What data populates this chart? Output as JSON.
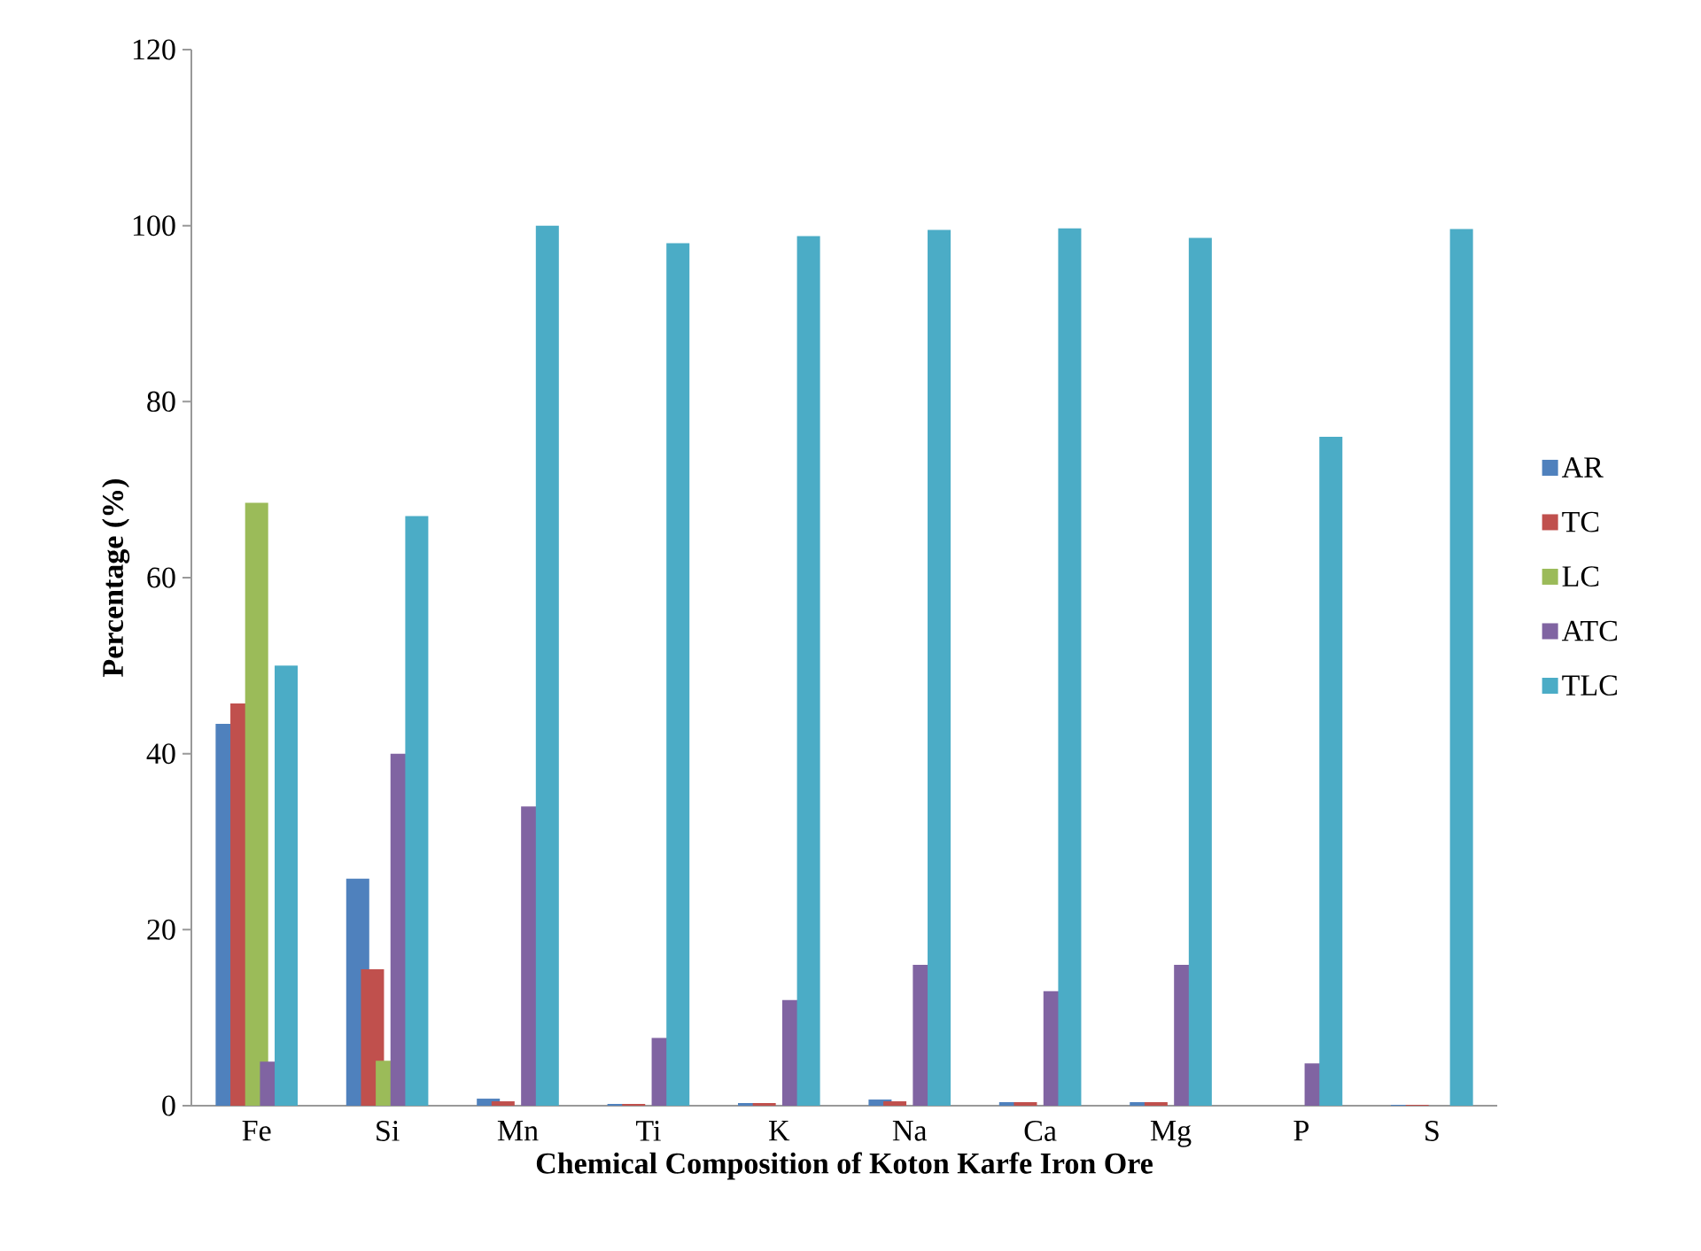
{
  "chart_data": {
    "type": "bar",
    "xlabel": "Chemical Composition of Koton Karfe Iron Ore",
    "ylabel": "Percentage (%)",
    "categories": [
      "Fe",
      "Si",
      "Mn",
      "Ti",
      "K",
      "Na",
      "Ca",
      "Mg",
      "P",
      "S"
    ],
    "series": [
      {
        "name": "AR",
        "color": "#4f81bd",
        "values": [
          43.4,
          25.8,
          0.8,
          0.2,
          0.3,
          0.7,
          0.4,
          0.4,
          0,
          0.1
        ]
      },
      {
        "name": "TC",
        "color": "#c0504d",
        "values": [
          45.7,
          15.5,
          0.5,
          0.2,
          0.3,
          0.5,
          0.4,
          0.4,
          0,
          0.1
        ]
      },
      {
        "name": "LC",
        "color": "#9bbb59",
        "values": [
          68.5,
          5.1,
          0,
          0,
          0,
          0,
          0,
          0,
          0,
          0
        ]
      },
      {
        "name": "ATC",
        "color": "#8064a2",
        "values": [
          5,
          40,
          34,
          7.7,
          12,
          16,
          13,
          16,
          4.8,
          null
        ]
      },
      {
        "name": "TLC",
        "color": "#4bacc6",
        "values": [
          50,
          67,
          100,
          98,
          98.8,
          99.5,
          99.7,
          98.6,
          76,
          99.6
        ]
      }
    ],
    "ylim": [
      0,
      120
    ],
    "yticks": [
      0,
      20,
      40,
      60,
      80,
      100,
      120
    ],
    "legend": "right",
    "grid": false
  }
}
